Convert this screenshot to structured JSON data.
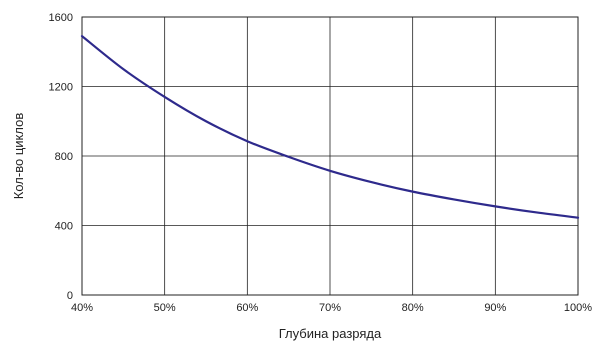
{
  "chart_data": {
    "type": "line",
    "xlabel": "Глубина разряда",
    "ylabel": "Кол-во циклов",
    "x_tick_labels": [
      "40%",
      "50%",
      "60%",
      "70%",
      "80%",
      "90%",
      "100%"
    ],
    "y_tick_labels": [
      "0",
      "400",
      "800",
      "1200",
      "1600"
    ],
    "xlim": [
      40,
      100
    ],
    "ylim": [
      0,
      1600
    ],
    "grid": true,
    "series": [
      {
        "color": "#2e2a8c",
        "x": [
          40,
          45,
          50,
          55,
          60,
          65,
          70,
          75,
          80,
          85,
          90,
          95,
          100
        ],
        "y": [
          1490,
          1300,
          1140,
          1000,
          885,
          795,
          715,
          650,
          595,
          550,
          510,
          475,
          445
        ]
      }
    ]
  }
}
